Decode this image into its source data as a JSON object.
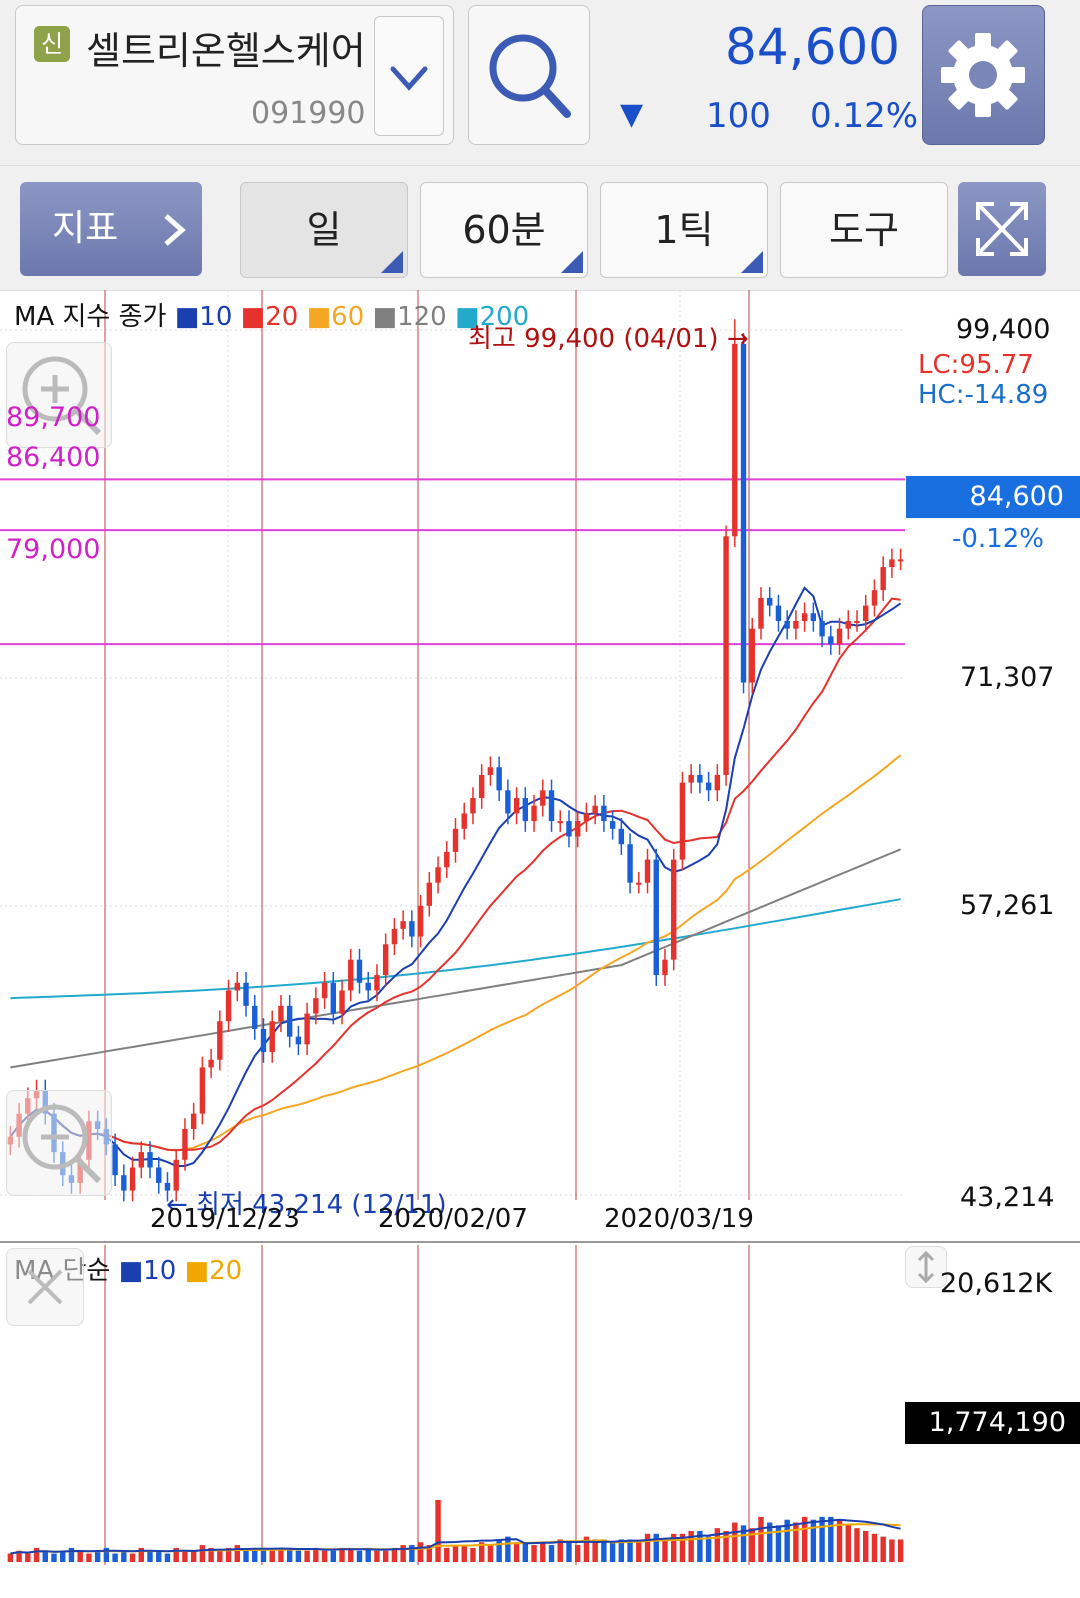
{
  "header": {
    "badge": "신",
    "stock_name": "셀트리온헬스케어",
    "stock_code": "091990",
    "price": "84,600",
    "change_arrow": "▼",
    "change": "100",
    "change_pct": "0.12%"
  },
  "toolbar": {
    "indicator_label": "지표",
    "tabs": [
      "일",
      "60분",
      "1틱",
      "도구"
    ]
  },
  "price_panel": {
    "legend_title": "MA 지수 종가",
    "legend_periods": [
      "10",
      "20",
      "60",
      "120",
      "200"
    ],
    "legend_colors": [
      "#1a3fb0",
      "#e5322d",
      "#f5a623",
      "#808080",
      "#22aacc"
    ],
    "y_labels": [
      "99,400",
      "71,307",
      "57,261",
      "43,214"
    ],
    "current_price": "84,600",
    "current_change": "-0.12%",
    "lc": "LC:95.77",
    "hc": "HC:-14.89",
    "high_note": "최고 99,400 (04/01) →",
    "low_note": "← 최저 43,214 (12/11)",
    "levels": [
      "89,700",
      "86,400",
      "79,000"
    ],
    "date_labels": [
      "2019/12/23",
      "2020/02/07",
      "2020/03/19"
    ]
  },
  "volume_panel": {
    "legend_title": "MA 단순",
    "legend_periods": [
      "10",
      "20"
    ],
    "legend_colors": [
      "#1a3fb0",
      "#f0a800"
    ],
    "max_label": "20,612K",
    "current_volume": "1,774,190"
  },
  "chart_data": {
    "type": "candlestick",
    "y_range": [
      43214,
      99400
    ],
    "volume_max": 20612000,
    "closes": [
      47000,
      48500,
      49500,
      50000,
      48500,
      46000,
      44500,
      44000,
      45500,
      48000,
      47500,
      46500,
      44500,
      43500,
      45000,
      46000,
      45000,
      44000,
      43500,
      45500,
      47500,
      48500,
      51500,
      52000,
      54500,
      56500,
      57000,
      55500,
      54000,
      52500,
      54500,
      55500,
      53500,
      53000,
      55000,
      56000,
      57000,
      55000,
      56500,
      58500,
      57000,
      56500,
      57500,
      59500,
      60500,
      61000,
      60000,
      62000,
      63500,
      64500,
      65500,
      67000,
      68000,
      69000,
      70500,
      71000,
      69500,
      68000,
      69000,
      67500,
      68500,
      69500,
      67500,
      67500,
      66500,
      67500,
      68000,
      68500,
      67500,
      67000,
      66000,
      63500,
      63500,
      65000,
      57500,
      58500,
      65000,
      70000,
      70500,
      70000,
      69500,
      70500,
      86000,
      98500,
      76500,
      80000,
      82000,
      81500,
      80500,
      80000,
      80500,
      81000,
      80500,
      79500,
      79000,
      80000,
      80500,
      80500,
      81500,
      82500,
      84000,
      84500,
      84500
    ],
    "volumes": [
      0.03,
      0.04,
      0.03,
      0.05,
      0.04,
      0.03,
      0.04,
      0.05,
      0.04,
      0.03,
      0.04,
      0.05,
      0.03,
      0.04,
      0.03,
      0.05,
      0.04,
      0.04,
      0.03,
      0.05,
      0.04,
      0.04,
      0.06,
      0.05,
      0.04,
      0.05,
      0.06,
      0.04,
      0.04,
      0.05,
      0.04,
      0.05,
      0.05,
      0.04,
      0.04,
      0.05,
      0.04,
      0.04,
      0.05,
      0.05,
      0.04,
      0.05,
      0.04,
      0.04,
      0.05,
      0.06,
      0.06,
      0.07,
      0.06,
      0.22,
      0.05,
      0.06,
      0.06,
      0.05,
      0.07,
      0.06,
      0.08,
      0.09,
      0.07,
      0.07,
      0.06,
      0.07,
      0.06,
      0.08,
      0.07,
      0.06,
      0.09,
      0.08,
      0.08,
      0.07,
      0.08,
      0.08,
      0.07,
      0.1,
      0.1,
      0.08,
      0.1,
      0.1,
      0.11,
      0.11,
      0.09,
      0.12,
      0.11,
      0.14,
      0.13,
      0.12,
      0.16,
      0.14,
      0.13,
      0.15,
      0.14,
      0.16,
      0.15,
      0.16,
      0.16,
      0.15,
      0.13,
      0.12,
      0.11,
      0.1,
      0.09,
      0.08,
      0.08
    ]
  }
}
